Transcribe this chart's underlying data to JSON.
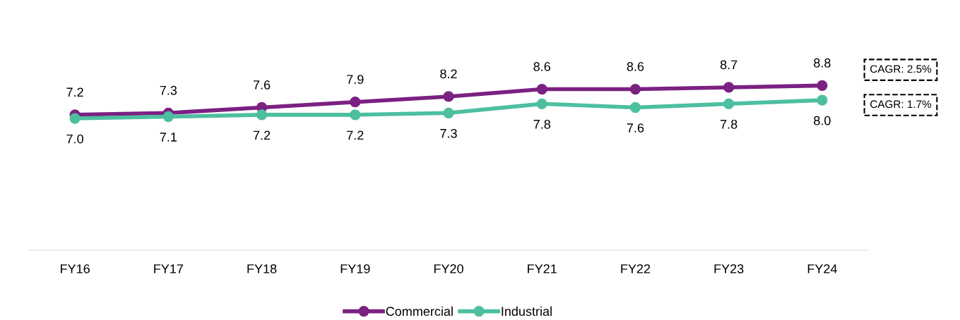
{
  "chart_data": {
    "type": "line",
    "categories": [
      "FY16",
      "FY17",
      "FY18",
      "FY19",
      "FY20",
      "FY21",
      "FY22",
      "FY23",
      "FY24"
    ],
    "series": [
      {
        "name": "Commercial",
        "color": "#7b2182",
        "values": [
          7.2,
          7.3,
          7.6,
          7.9,
          8.2,
          8.6,
          8.6,
          8.7,
          8.8
        ],
        "value_labels": [
          "7.2",
          "7.3",
          "7.6",
          "7.9",
          "8.2",
          "8.6",
          "8.6",
          "8.7",
          "8.8"
        ]
      },
      {
        "name": "Industrial",
        "color": "#4dbf9f",
        "values": [
          7.0,
          7.1,
          7.2,
          7.2,
          7.3,
          7.8,
          7.6,
          7.8,
          8.0
        ],
        "value_labels": [
          "7.0",
          "7.1",
          "7.2",
          "7.2",
          "7.3",
          "7.8",
          "7.6",
          "7.8",
          "8.0"
        ]
      }
    ],
    "annotations": [
      "CAGR: 2.5%",
      "CAGR: 1.7%"
    ],
    "tick_labels": "x",
    "legend": "bottom",
    "marker": "circle",
    "line_style": "solid",
    "grid": false
  }
}
